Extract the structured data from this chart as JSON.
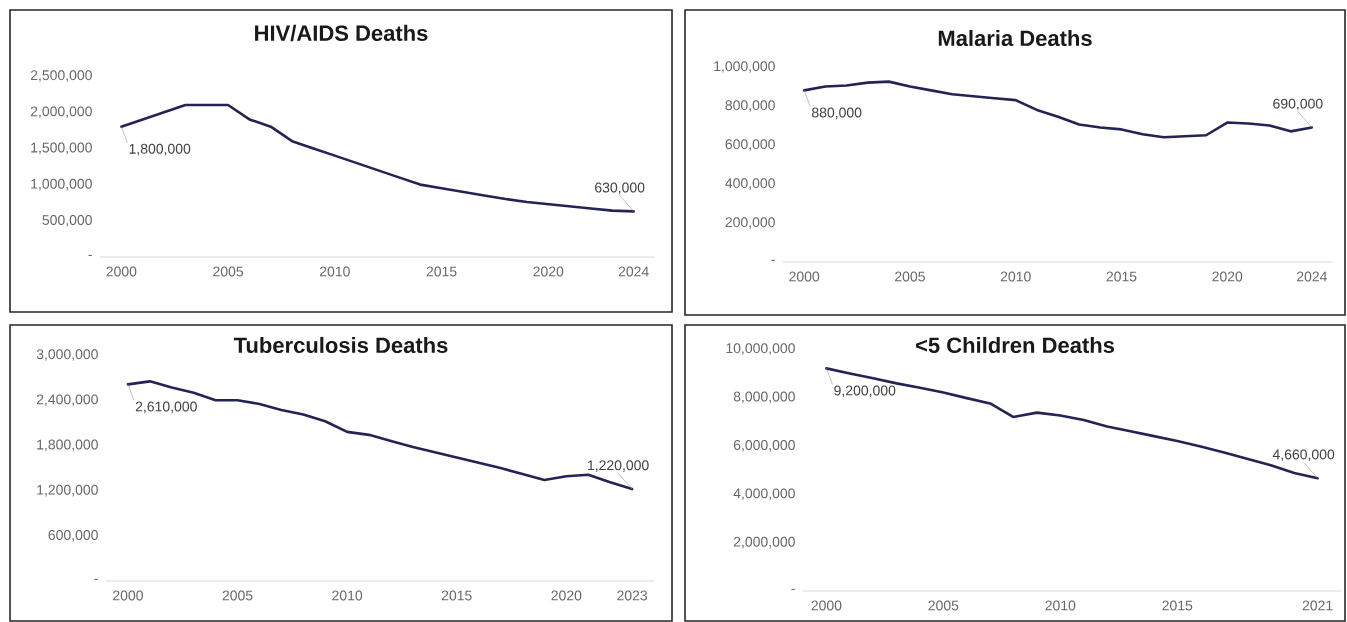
{
  "chart_data": [
    {
      "type": "line",
      "title": "HIV/AIDS Deaths",
      "x": [
        2000,
        2001,
        2002,
        2003,
        2004,
        2005,
        2006,
        2007,
        2008,
        2009,
        2010,
        2011,
        2012,
        2013,
        2014,
        2015,
        2016,
        2017,
        2018,
        2019,
        2020,
        2021,
        2022,
        2023,
        2024
      ],
      "series": [
        {
          "color": "#232455",
          "values": [
            1800000,
            1900000,
            2000000,
            2100000,
            2100000,
            2100000,
            1900000,
            1800000,
            1600000,
            1500000,
            1400000,
            1300000,
            1200000,
            1100000,
            1000000,
            950000,
            900000,
            850000,
            800000,
            760000,
            730000,
            700000,
            670000,
            640000,
            630000
          ]
        }
      ],
      "xlim": [
        1999,
        2025
      ],
      "ylim": [
        0,
        2500000
      ],
      "xticks": [
        2000,
        2005,
        2010,
        2015,
        2020,
        2024
      ],
      "yticks": [
        {
          "value": 0,
          "label": "-"
        },
        {
          "value": 500000,
          "label": "500,000"
        },
        {
          "value": 1000000,
          "label": "1,000,000"
        },
        {
          "value": 1500000,
          "label": "1,500,000"
        },
        {
          "value": 2000000,
          "label": "2,000,000"
        },
        {
          "value": 2500000,
          "label": "2,500,000"
        }
      ],
      "annotations": [
        {
          "text": "1,800,000",
          "x": 2000,
          "y": 1800000
        },
        {
          "text": "630,000",
          "x": 2024,
          "y": 630000
        }
      ]
    },
    {
      "type": "line",
      "title": "Malaria Deaths",
      "x": [
        2000,
        2001,
        2002,
        2003,
        2004,
        2005,
        2006,
        2007,
        2008,
        2009,
        2010,
        2011,
        2012,
        2013,
        2014,
        2015,
        2016,
        2017,
        2018,
        2019,
        2020,
        2021,
        2022,
        2023,
        2024
      ],
      "series": [
        {
          "color": "#232455",
          "values": [
            880000,
            900000,
            905000,
            920000,
            925000,
            900000,
            880000,
            860000,
            850000,
            840000,
            830000,
            780000,
            745000,
            705000,
            690000,
            680000,
            655000,
            640000,
            645000,
            650000,
            715000,
            710000,
            700000,
            670000,
            690000
          ]
        }
      ],
      "xlim": [
        1999,
        2025
      ],
      "ylim": [
        0,
        1000000
      ],
      "xticks": [
        2000,
        2005,
        2010,
        2015,
        2020,
        2024
      ],
      "yticks": [
        {
          "value": 0,
          "label": "-"
        },
        {
          "value": 200000,
          "label": "200,000"
        },
        {
          "value": 400000,
          "label": "400,000"
        },
        {
          "value": 600000,
          "label": "600,000"
        },
        {
          "value": 800000,
          "label": "800,000"
        },
        {
          "value": 1000000,
          "label": "1,000,000"
        }
      ],
      "annotations": [
        {
          "text": "880,000",
          "x": 2000,
          "y": 880000
        },
        {
          "text": "690,000",
          "x": 2024,
          "y": 690000
        }
      ]
    },
    {
      "type": "line",
      "title": "Tuberculosis Deaths",
      "x": [
        2000,
        2001,
        2002,
        2003,
        2004,
        2005,
        2006,
        2007,
        2008,
        2009,
        2010,
        2011,
        2012,
        2013,
        2014,
        2015,
        2016,
        2017,
        2018,
        2019,
        2020,
        2021,
        2022,
        2023
      ],
      "series": [
        {
          "color": "#232455",
          "values": [
            2610000,
            2650000,
            2570000,
            2500000,
            2400000,
            2400000,
            2350000,
            2270000,
            2210000,
            2120000,
            1980000,
            1940000,
            1860000,
            1780000,
            1710000,
            1640000,
            1570000,
            1500000,
            1420000,
            1340000,
            1390000,
            1410000,
            1310000,
            1220000
          ]
        }
      ],
      "xlim": [
        1999,
        2024
      ],
      "ylim": [
        0,
        3000000
      ],
      "xticks": [
        2000,
        2005,
        2010,
        2015,
        2020,
        2023
      ],
      "yticks": [
        {
          "value": 0,
          "label": "-"
        },
        {
          "value": 600000,
          "label": "600,000"
        },
        {
          "value": 1200000,
          "label": "1,200,000"
        },
        {
          "value": 1800000,
          "label": "1,800,000"
        },
        {
          "value": 2400000,
          "label": "2,400,000"
        },
        {
          "value": 3000000,
          "label": "3,000,000"
        }
      ],
      "annotations": [
        {
          "text": "2,610,000",
          "x": 2000,
          "y": 2610000
        },
        {
          "text": "1,220,000",
          "x": 2023,
          "y": 1220000
        }
      ]
    },
    {
      "type": "line",
      "title": "<5 Children Deaths",
      "x": [
        2000,
        2001,
        2002,
        2003,
        2004,
        2005,
        2006,
        2007,
        2008,
        2009,
        2010,
        2011,
        2012,
        2013,
        2014,
        2015,
        2016,
        2017,
        2018,
        2019,
        2020,
        2021
      ],
      "series": [
        {
          "color": "#232455",
          "values": [
            9200000,
            8990000,
            8790000,
            8580000,
            8400000,
            8200000,
            7970000,
            7750000,
            7190000,
            7370000,
            7250000,
            7070000,
            6800000,
            6600000,
            6400000,
            6200000,
            5970000,
            5720000,
            5460000,
            5200000,
            4880000,
            4660000
          ]
        }
      ],
      "xlim": [
        1999,
        2022
      ],
      "ylim": [
        0,
        10000000
      ],
      "xticks": [
        2000,
        2005,
        2010,
        2015,
        2021
      ],
      "yticks": [
        {
          "value": 0,
          "label": "-"
        },
        {
          "value": 2000000,
          "label": "2,000,000"
        },
        {
          "value": 4000000,
          "label": "4,000,000"
        },
        {
          "value": 6000000,
          "label": "6,000,000"
        },
        {
          "value": 8000000,
          "label": "8,000,000"
        },
        {
          "value": 10000000,
          "label": "10,000,000"
        }
      ],
      "annotations": [
        {
          "text": "9,200,000",
          "x": 2000,
          "y": 9200000
        },
        {
          "text": "4,660,000",
          "x": 2021,
          "y": 4660000
        }
      ]
    }
  ]
}
